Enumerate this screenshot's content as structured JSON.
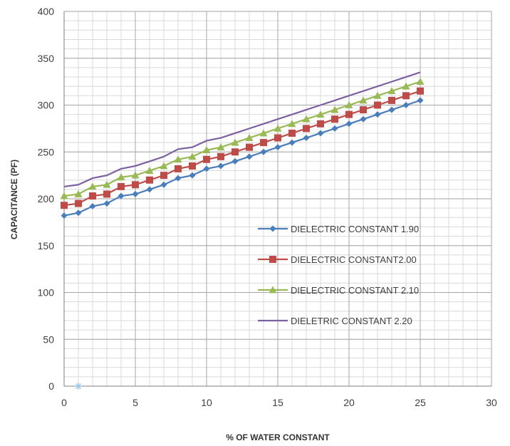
{
  "chart_data": {
    "type": "line",
    "xlabel": "% OF WATER CONSTANT",
    "ylabel": "CAPACITANCE (PF)",
    "xlim": [
      0,
      30
    ],
    "ylim": [
      0,
      400
    ],
    "x_ticks": [
      "0",
      "5",
      "10",
      "15",
      "20",
      "25",
      "30"
    ],
    "y_ticks": [
      "0",
      "50",
      "100",
      "150",
      "200",
      "250",
      "300",
      "350",
      "400"
    ],
    "grid": true,
    "minor_grid": true,
    "legend_position": "center-right",
    "x": [
      0,
      1,
      2,
      3,
      4,
      5,
      6,
      7,
      8,
      9,
      10,
      11,
      12,
      13,
      14,
      15,
      16,
      17,
      18,
      19,
      20,
      21,
      22,
      23,
      24,
      25
    ],
    "series": [
      {
        "name": "DIELECTRIC CONSTANT 1.90",
        "color": "#4a7ebb",
        "marker": "diamond",
        "values": [
          182,
          185,
          192,
          195,
          203,
          205,
          210,
          215,
          222,
          225,
          232,
          235,
          240,
          245,
          250,
          255,
          260,
          265,
          270,
          275,
          280,
          285,
          290,
          295,
          300,
          305
        ]
      },
      {
        "name": "DIELECTRIC CONSTANT2.00",
        "color": "#be4b48",
        "marker": "square",
        "values": [
          193,
          195,
          203,
          205,
          213,
          215,
          220,
          225,
          232,
          235,
          242,
          245,
          250,
          255,
          260,
          265,
          270,
          275,
          280,
          285,
          290,
          295,
          300,
          305,
          310,
          315
        ]
      },
      {
        "name": "DIELECTRIC CONSTANT 2.10",
        "color": "#98b954",
        "marker": "triangle",
        "values": [
          203,
          205,
          213,
          215,
          223,
          225,
          230,
          235,
          242,
          245,
          252,
          255,
          260,
          265,
          270,
          275,
          280,
          285,
          290,
          295,
          300,
          305,
          310,
          315,
          320,
          325
        ]
      },
      {
        "name": "DIELETRIC CONSTANT 2.20",
        "color": "#7d60a0",
        "marker": "none",
        "values": [
          213,
          215,
          222,
          225,
          232,
          235,
          240,
          245,
          253,
          255,
          262,
          265,
          270,
          275,
          280,
          285,
          290,
          295,
          300,
          305,
          310,
          315,
          320,
          325,
          330,
          335
        ]
      }
    ],
    "stray_point": {
      "x": 1,
      "y": 0,
      "color": "#9ec7e6",
      "marker": "star"
    }
  }
}
